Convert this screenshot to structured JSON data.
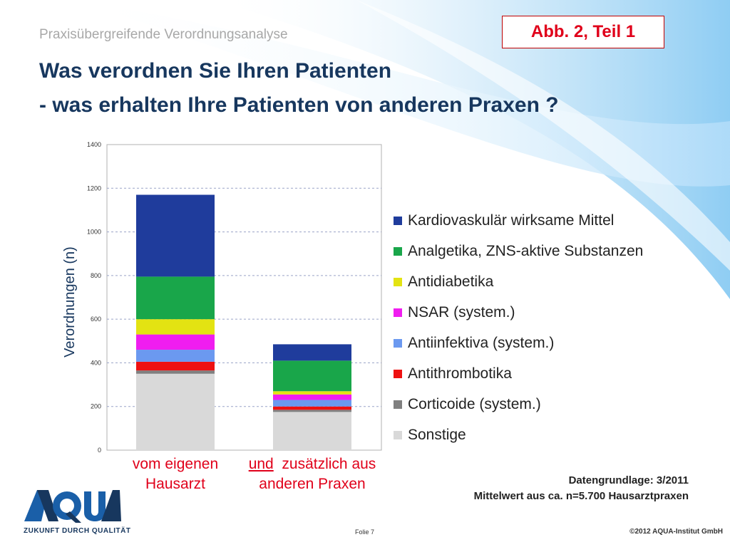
{
  "header": {
    "subtitle": "Praxisübergreifende Verordnungsanalyse",
    "title_line1": "Was verordnen Sie Ihren Patienten",
    "title_line2": "- was  erhalten Ihre Patienten von anderen Praxen ?",
    "figure_label": "Abb. 2, Teil 1"
  },
  "x_categories": {
    "cat1_line1": "vom eigenen",
    "cat1_line2": "Hausarzt",
    "cat2_und": "und",
    "cat2_line1_rest": "  zusätzlich aus",
    "cat2_line2": "anderen Praxen"
  },
  "notes": {
    "data_basis": "Datengrundlage: 3/2011",
    "mean_note": "Mittelwert aus ca. n=5.700 Hausarztpraxen"
  },
  "footer": {
    "logo_text": "AQUA",
    "tagline": "ZUKUNFT DURCH QUALITÄT",
    "slide": "Folie 7",
    "copyright": "©2012 AQUA-Institut GmbH"
  },
  "legend": [
    {
      "label": "Kardiovaskulär wirksame Mittel",
      "color": "#1f3c9c"
    },
    {
      "label": "Analgetika, ZNS-aktive Substanzen",
      "color": "#19a64a"
    },
    {
      "label": "Antidiabetika",
      "color": "#e3e312"
    },
    {
      "label": "NSAR (system.)",
      "color": "#f01df0"
    },
    {
      "label": "Antiinfektiva (system.)",
      "color": "#6b99f0"
    },
    {
      "label": "Antithrombotika",
      "color": "#ee1111"
    },
    {
      "label": "Corticoide (system.)",
      "color": "#808080"
    },
    {
      "label": "Sonstige",
      "color": "#d9d9d9"
    }
  ],
  "chart_data": {
    "type": "bar",
    "stacked": true,
    "categories": [
      "vom eigenen Hausarzt",
      "und zusätzlich aus anderen Praxen"
    ],
    "ylabel": "Verordnungen (n)",
    "ylim": [
      0,
      1400
    ],
    "yticks": [
      "0",
      "200",
      "400",
      "600",
      "800",
      "1000",
      "1200",
      "1400"
    ],
    "grid": true,
    "legend_position": "right",
    "series": [
      {
        "name": "Sonstige",
        "color": "#d9d9d9",
        "values": [
          350,
          175
        ]
      },
      {
        "name": "Corticoide (system.)",
        "color": "#808080",
        "values": [
          15,
          10
        ]
      },
      {
        "name": "Antithrombotika",
        "color": "#ee1111",
        "values": [
          40,
          15
        ]
      },
      {
        "name": "Antiinfektiva (system.)",
        "color": "#6b99f0",
        "values": [
          55,
          30
        ]
      },
      {
        "name": "NSAR (system.)",
        "color": "#f01df0",
        "values": [
          70,
          25
        ]
      },
      {
        "name": "Antidiabetika",
        "color": "#e3e312",
        "values": [
          70,
          15
        ]
      },
      {
        "name": "Analgetika, ZNS-aktive Substanzen",
        "color": "#19a64a",
        "values": [
          195,
          140
        ]
      },
      {
        "name": "Kardiovaskulär wirksame Mittel",
        "color": "#1f3c9c",
        "values": [
          375,
          75
        ]
      }
    ]
  }
}
